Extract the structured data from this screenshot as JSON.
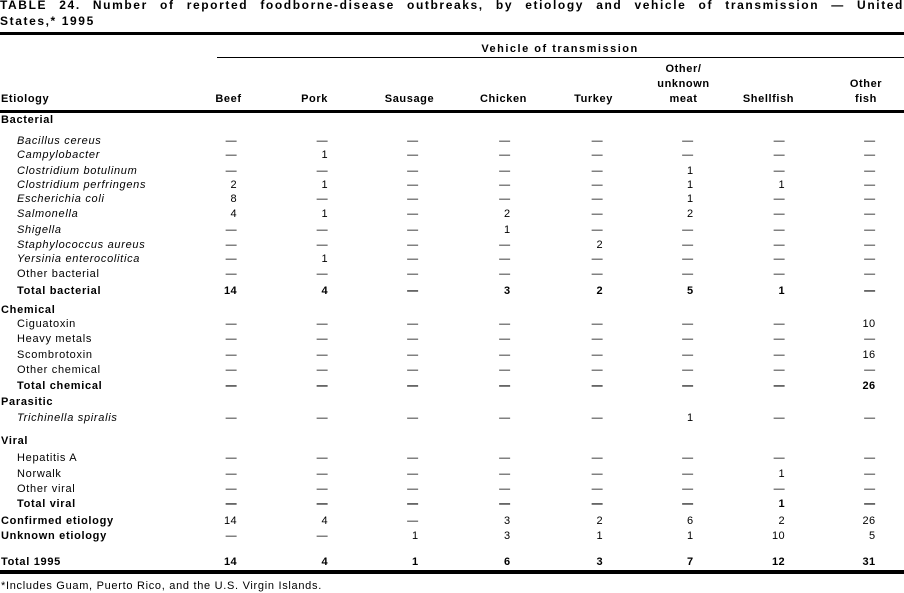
{
  "title": {
    "line1": "TABLE 24. Number of reported foodborne-disease outbreaks, by etiology and vehicle of transmission — United",
    "line2": "States,* 1995"
  },
  "table": {
    "group_header": "Vehicle of transmission",
    "etiology_header": "Etiology",
    "columns": [
      {
        "label": "Beef"
      },
      {
        "label": "Pork"
      },
      {
        "label": "Sausage"
      },
      {
        "label": "Chicken"
      },
      {
        "label": "Turkey"
      },
      {
        "label": "Other/\nunknown\nmeat"
      },
      {
        "label": "Shellfish"
      },
      {
        "label": "Other\nfish"
      }
    ],
    "rows": [
      {
        "label": "Bacterial",
        "style": "section"
      },
      {
        "label": "Bacillus cereus",
        "style": "species",
        "values": [
          "—",
          "—",
          "—",
          "—",
          "—",
          "—",
          "—",
          "—"
        ]
      },
      {
        "label": "Campylobacter",
        "style": "species",
        "values": [
          "—",
          "1",
          "—",
          "—",
          "—",
          "—",
          "—",
          "—"
        ]
      },
      {
        "label": "Clostridium botulinum",
        "style": "species",
        "values": [
          "—",
          "—",
          "—",
          "—",
          "—",
          "1",
          "—",
          "—"
        ]
      },
      {
        "label": "Clostridium perfringens",
        "style": "species",
        "values": [
          "2",
          "1",
          "—",
          "—",
          "—",
          "1",
          "1",
          "—"
        ]
      },
      {
        "label": "Escherichia coli",
        "style": "species",
        "values": [
          "8",
          "—",
          "—",
          "—",
          "—",
          "1",
          "—",
          "—"
        ]
      },
      {
        "label": "Salmonella",
        "style": "species",
        "values": [
          "4",
          "1",
          "—",
          "2",
          "—",
          "2",
          "—",
          "—"
        ]
      },
      {
        "label": "Shigella",
        "style": "species",
        "values": [
          "—",
          "—",
          "—",
          "1",
          "—",
          "—",
          "—",
          "—"
        ]
      },
      {
        "label": "Staphylococcus aureus",
        "style": "species",
        "values": [
          "—",
          "—",
          "—",
          "—",
          "2",
          "—",
          "—",
          "—"
        ]
      },
      {
        "label": "Yersinia enterocolitica",
        "style": "species",
        "values": [
          "—",
          "1",
          "—",
          "—",
          "—",
          "—",
          "—",
          "—"
        ]
      },
      {
        "label": "Other bacterial",
        "style": "item",
        "values": [
          "—",
          "—",
          "—",
          "—",
          "—",
          "—",
          "—",
          "—"
        ]
      },
      {
        "label": "Total bacterial",
        "style": "total",
        "values": [
          "14",
          "4",
          "—",
          "3",
          "2",
          "5",
          "1",
          "—"
        ]
      },
      {
        "label": "Chemical",
        "style": "section"
      },
      {
        "label": "Ciguatoxin",
        "style": "item",
        "values": [
          "—",
          "—",
          "—",
          "—",
          "—",
          "—",
          "—",
          "10"
        ]
      },
      {
        "label": "Heavy metals",
        "style": "item",
        "values": [
          "—",
          "—",
          "—",
          "—",
          "—",
          "—",
          "—",
          "—"
        ]
      },
      {
        "label": "Scombrotoxin",
        "style": "item",
        "values": [
          "—",
          "—",
          "—",
          "—",
          "—",
          "—",
          "—",
          "16"
        ]
      },
      {
        "label": "Other chemical",
        "style": "item",
        "values": [
          "—",
          "—",
          "—",
          "—",
          "—",
          "—",
          "—",
          "—"
        ]
      },
      {
        "label": "Total chemical",
        "style": "total",
        "values": [
          "—",
          "—",
          "—",
          "—",
          "—",
          "—",
          "—",
          "26"
        ]
      },
      {
        "label": "Parasitic",
        "style": "section"
      },
      {
        "label": "Trichinella spiralis",
        "style": "species",
        "values": [
          "—",
          "—",
          "—",
          "—",
          "—",
          "1",
          "—",
          "—"
        ]
      },
      {
        "label": "Viral",
        "style": "section"
      },
      {
        "label": "Hepatitis A",
        "style": "item",
        "values": [
          "—",
          "—",
          "—",
          "—",
          "—",
          "—",
          "—",
          "—"
        ]
      },
      {
        "label": "Norwalk",
        "style": "item",
        "values": [
          "—",
          "—",
          "—",
          "—",
          "—",
          "—",
          "1",
          "—"
        ]
      },
      {
        "label": "Other viral",
        "style": "item",
        "values": [
          "—",
          "—",
          "—",
          "—",
          "—",
          "—",
          "—",
          "—"
        ]
      },
      {
        "label": "Total viral",
        "style": "total",
        "values": [
          "—",
          "—",
          "—",
          "—",
          "—",
          "—",
          "1",
          "—"
        ]
      },
      {
        "label": "Confirmed etiology",
        "style": "grand",
        "values": [
          "14",
          "4",
          "—",
          "3",
          "2",
          "6",
          "2",
          "26"
        ]
      },
      {
        "label": "Unknown etiology",
        "style": "grand",
        "values": [
          "—",
          "—",
          "1",
          "3",
          "1",
          "1",
          "10",
          "5"
        ]
      },
      {
        "label": "Total 1995",
        "style": "grandtotal",
        "values": [
          "14",
          "4",
          "1",
          "6",
          "3",
          "7",
          "12",
          "31"
        ]
      }
    ]
  },
  "footnote": "*Includes Guam, Puerto Rico, and the U.S. Virgin Islands."
}
